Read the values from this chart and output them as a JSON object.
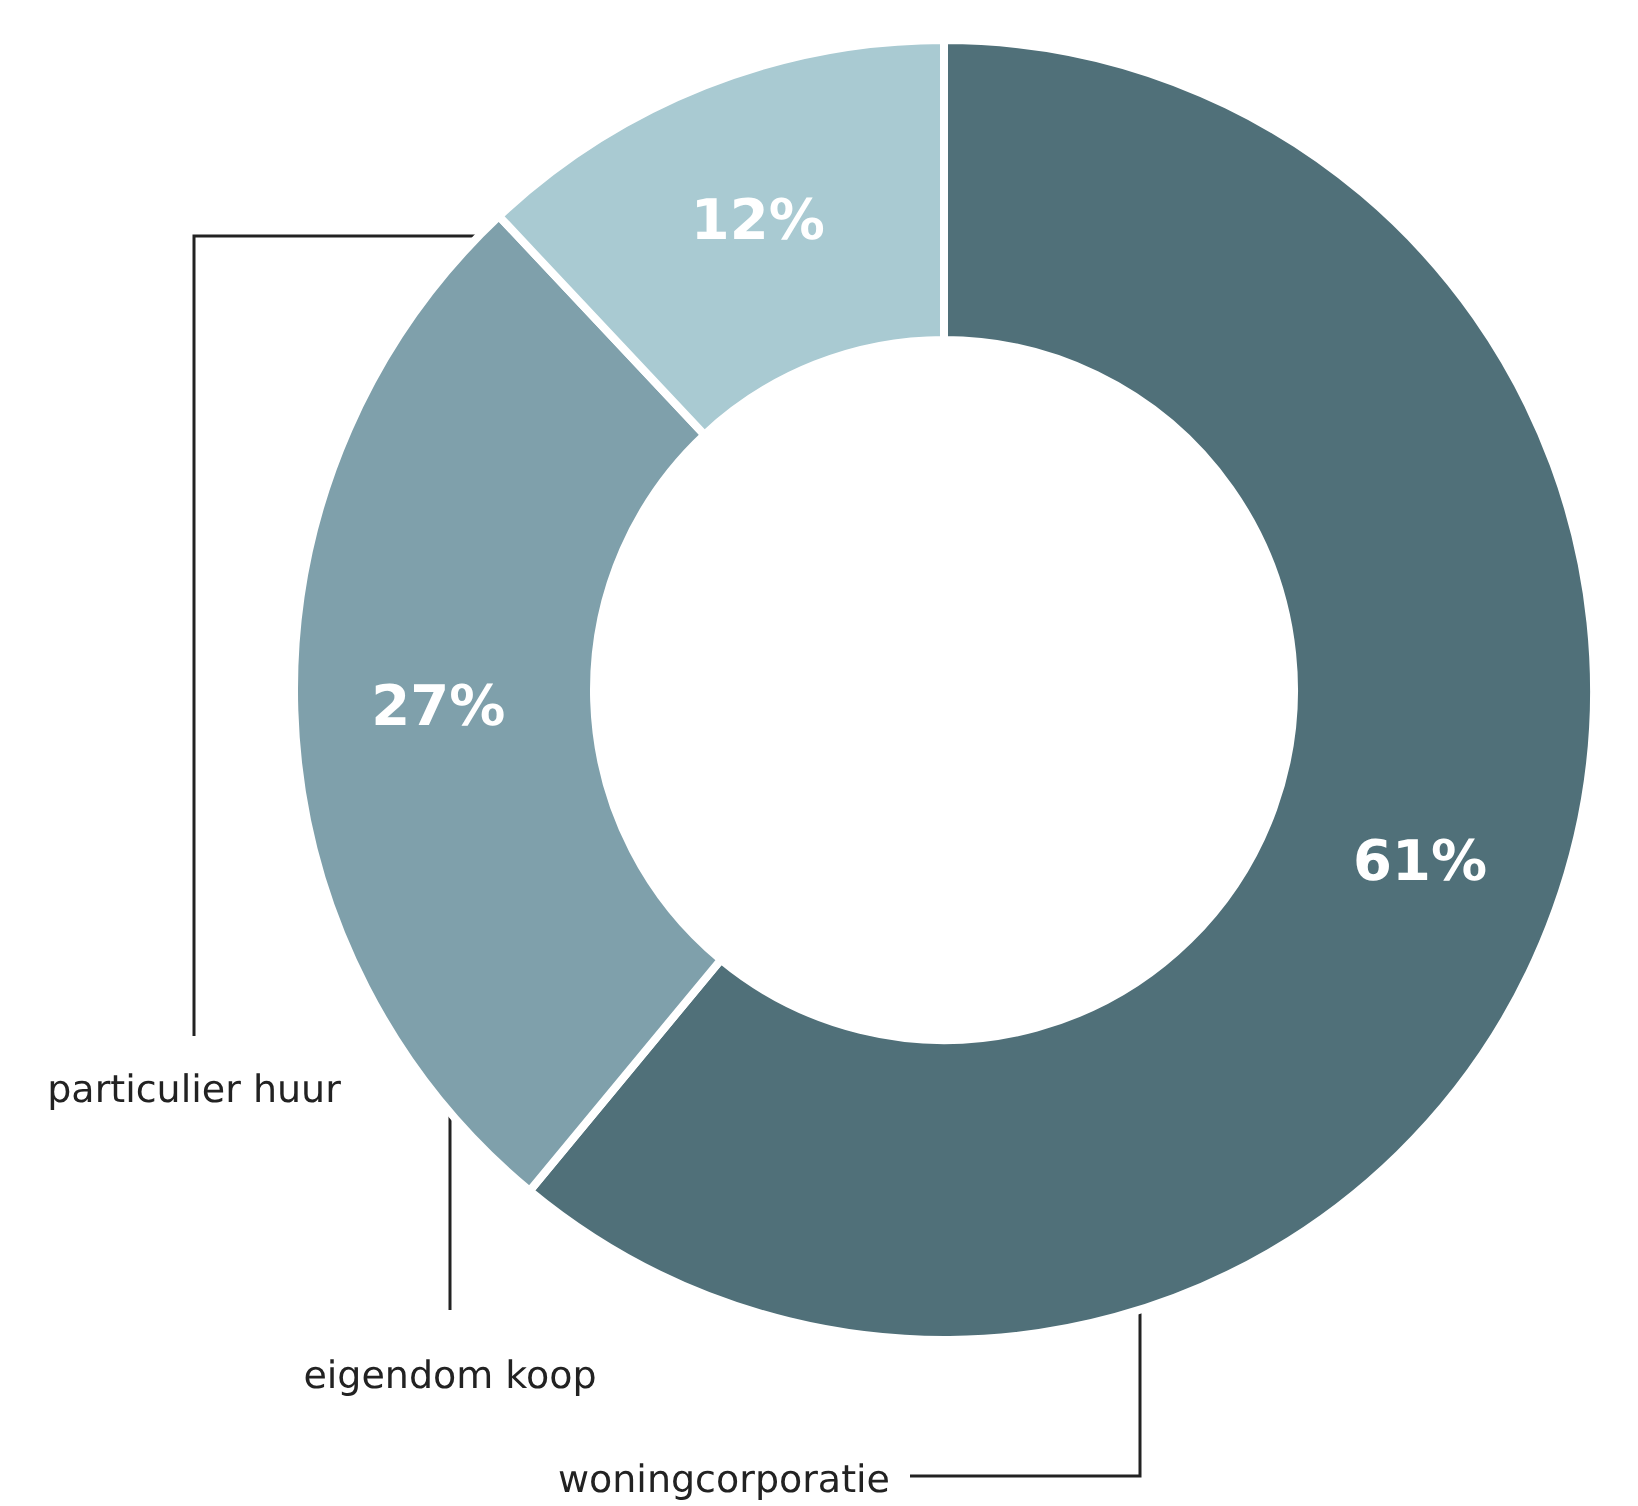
{
  "chart_data": {
    "type": "donut",
    "categories": [
      "woningcorporatie",
      "eigendom koop",
      "particulier huur"
    ],
    "values": [
      61,
      27,
      12
    ],
    "colors": [
      "#507079",
      "#7fa0ab",
      "#a9cad2"
    ],
    "value_labels": [
      "61%",
      "27%",
      "12%"
    ],
    "legend": false
  }
}
